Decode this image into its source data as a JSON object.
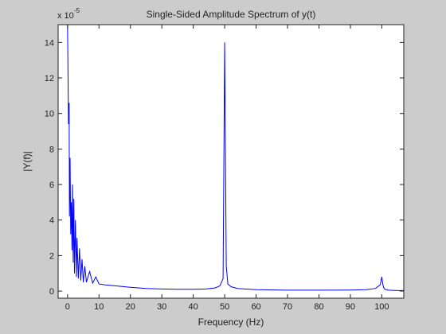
{
  "chart_data": {
    "type": "line",
    "title": "Single-Sided Amplitude Spectrum of y(t)",
    "xlabel": "Frequency (Hz)",
    "ylabel": "|Y(f)|",
    "y_exponent_label": "x 10",
    "y_exponent_power": "-5",
    "xlim": [
      -3,
      107
    ],
    "ylim": [
      -0.4,
      15
    ],
    "x_ticks": [
      "0",
      "10",
      "20",
      "30",
      "40",
      "50",
      "60",
      "70",
      "80",
      "90",
      "100"
    ],
    "y_ticks": [
      "0",
      "2",
      "4",
      "6",
      "8",
      "10",
      "12",
      "14"
    ],
    "grid": false,
    "line_color": "#0000ff",
    "series": [
      {
        "x": [
          0,
          0.3,
          0.5,
          0.6,
          0.8,
          1.0,
          1.2,
          1.4,
          1.6,
          1.8,
          2.0,
          2.2,
          2.5,
          2.8,
          3.0,
          3.4,
          3.8,
          4.2,
          4.6,
          5.0,
          5.5,
          6.0,
          7.0,
          8.0,
          9.0,
          10.0,
          12.0,
          15.0,
          20.0,
          25.0,
          30.0,
          35.0,
          40.0,
          44.0,
          47.0,
          48.5,
          49.5,
          50.0,
          50.5,
          51.0,
          52.0,
          54.0,
          60.0,
          70.0,
          80.0,
          90.0,
          95.0,
          98.0,
          99.5,
          100.0,
          100.3,
          100.6,
          101.0,
          102.0,
          105.0,
          107.0
        ],
        "y": [
          15.0,
          9.4,
          10.6,
          4.2,
          7.5,
          3.2,
          5.0,
          2.3,
          6.0,
          1.6,
          5.2,
          1.0,
          4.0,
          0.8,
          3.0,
          0.7,
          2.4,
          0.6,
          1.8,
          0.5,
          1.4,
          0.5,
          1.1,
          0.45,
          0.8,
          0.4,
          0.35,
          0.3,
          0.22,
          0.15,
          0.12,
          0.1,
          0.1,
          0.12,
          0.18,
          0.3,
          0.7,
          14.0,
          1.4,
          0.4,
          0.25,
          0.15,
          0.08,
          0.05,
          0.05,
          0.06,
          0.08,
          0.15,
          0.35,
          0.8,
          0.4,
          0.2,
          0.1,
          0.05,
          0.03,
          0.03
        ]
      }
    ]
  }
}
